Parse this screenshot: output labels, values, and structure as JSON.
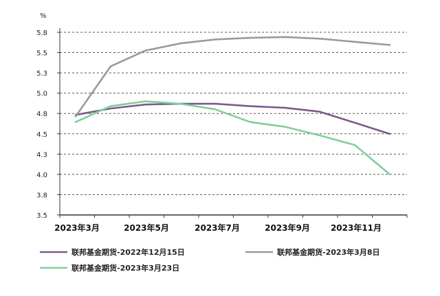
{
  "chart_data": {
    "type": "line",
    "unit": "%",
    "x_ticks": [
      "2023年3月",
      "2023年5月",
      "2023年7月",
      "2023年9月",
      "2023年11月"
    ],
    "x": [
      "2023-03",
      "2023-04",
      "2023-05",
      "2023-06",
      "2023-07",
      "2023-08",
      "2023-09",
      "2023-10",
      "2023-11",
      "2023-12"
    ],
    "y_ticks": [
      "3.5",
      "3.8",
      "4.0",
      "4.3",
      "4.5",
      "4.8",
      "5.0",
      "5.3",
      "5.5",
      "5.8"
    ],
    "ylim": [
      3.5,
      5.8
    ],
    "grid": true,
    "legend_position": "bottom",
    "series": [
      {
        "name": "联邦基金期货-2022年12月15日",
        "color": "#7a5a8c",
        "values": [
          4.76,
          4.84,
          4.89,
          4.9,
          4.9,
          4.87,
          4.85,
          4.8,
          4.66,
          4.52
        ]
      },
      {
        "name": "联邦基金期货-2023年3月8日",
        "color": "#9a9a9a",
        "values": [
          4.74,
          5.37,
          5.57,
          5.66,
          5.71,
          5.73,
          5.74,
          5.72,
          5.68,
          5.64
        ]
      },
      {
        "name": "联邦基金期货-2023年3月23日",
        "color": "#7fcf9a",
        "values": [
          4.67,
          4.87,
          4.93,
          4.9,
          4.83,
          4.67,
          4.61,
          4.5,
          4.38,
          4.01
        ]
      }
    ]
  }
}
